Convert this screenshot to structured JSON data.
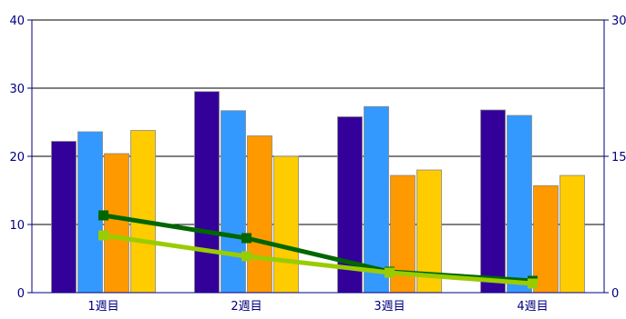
{
  "chart_data": {
    "type": "bar",
    "categories": [
      "1週目",
      "2週目",
      "3週目",
      "4週目"
    ],
    "series": [
      {
        "type": "bar",
        "axis": "left",
        "color": "#330099",
        "values": [
          22.2,
          29.5,
          25.8,
          26.8
        ]
      },
      {
        "type": "bar",
        "axis": "left",
        "color": "#3399FF",
        "values": [
          23.6,
          26.7,
          27.3,
          26.0
        ]
      },
      {
        "type": "bar",
        "axis": "left",
        "color": "#FF9900",
        "values": [
          20.4,
          23.0,
          17.2,
          15.7
        ]
      },
      {
        "type": "bar",
        "axis": "left",
        "color": "#FFCC00",
        "values": [
          23.8,
          20.0,
          18.0,
          17.2
        ]
      },
      {
        "type": "line",
        "axis": "right",
        "color": "#006600",
        "values": [
          8.5,
          6.0,
          2.3,
          1.3
        ]
      },
      {
        "type": "line",
        "axis": "right",
        "color": "#99CC00",
        "values": [
          6.3,
          4.0,
          2.2,
          1.0
        ]
      }
    ],
    "left_axis": {
      "ylim": [
        0,
        40
      ],
      "ticks": [
        "0",
        "10",
        "20",
        "30",
        "40"
      ]
    },
    "right_axis": {
      "ylim": [
        0,
        30
      ],
      "ticks": [
        "0",
        "15",
        "30"
      ]
    },
    "grid": true,
    "title": "",
    "xlabel": "",
    "ylabel": ""
  }
}
